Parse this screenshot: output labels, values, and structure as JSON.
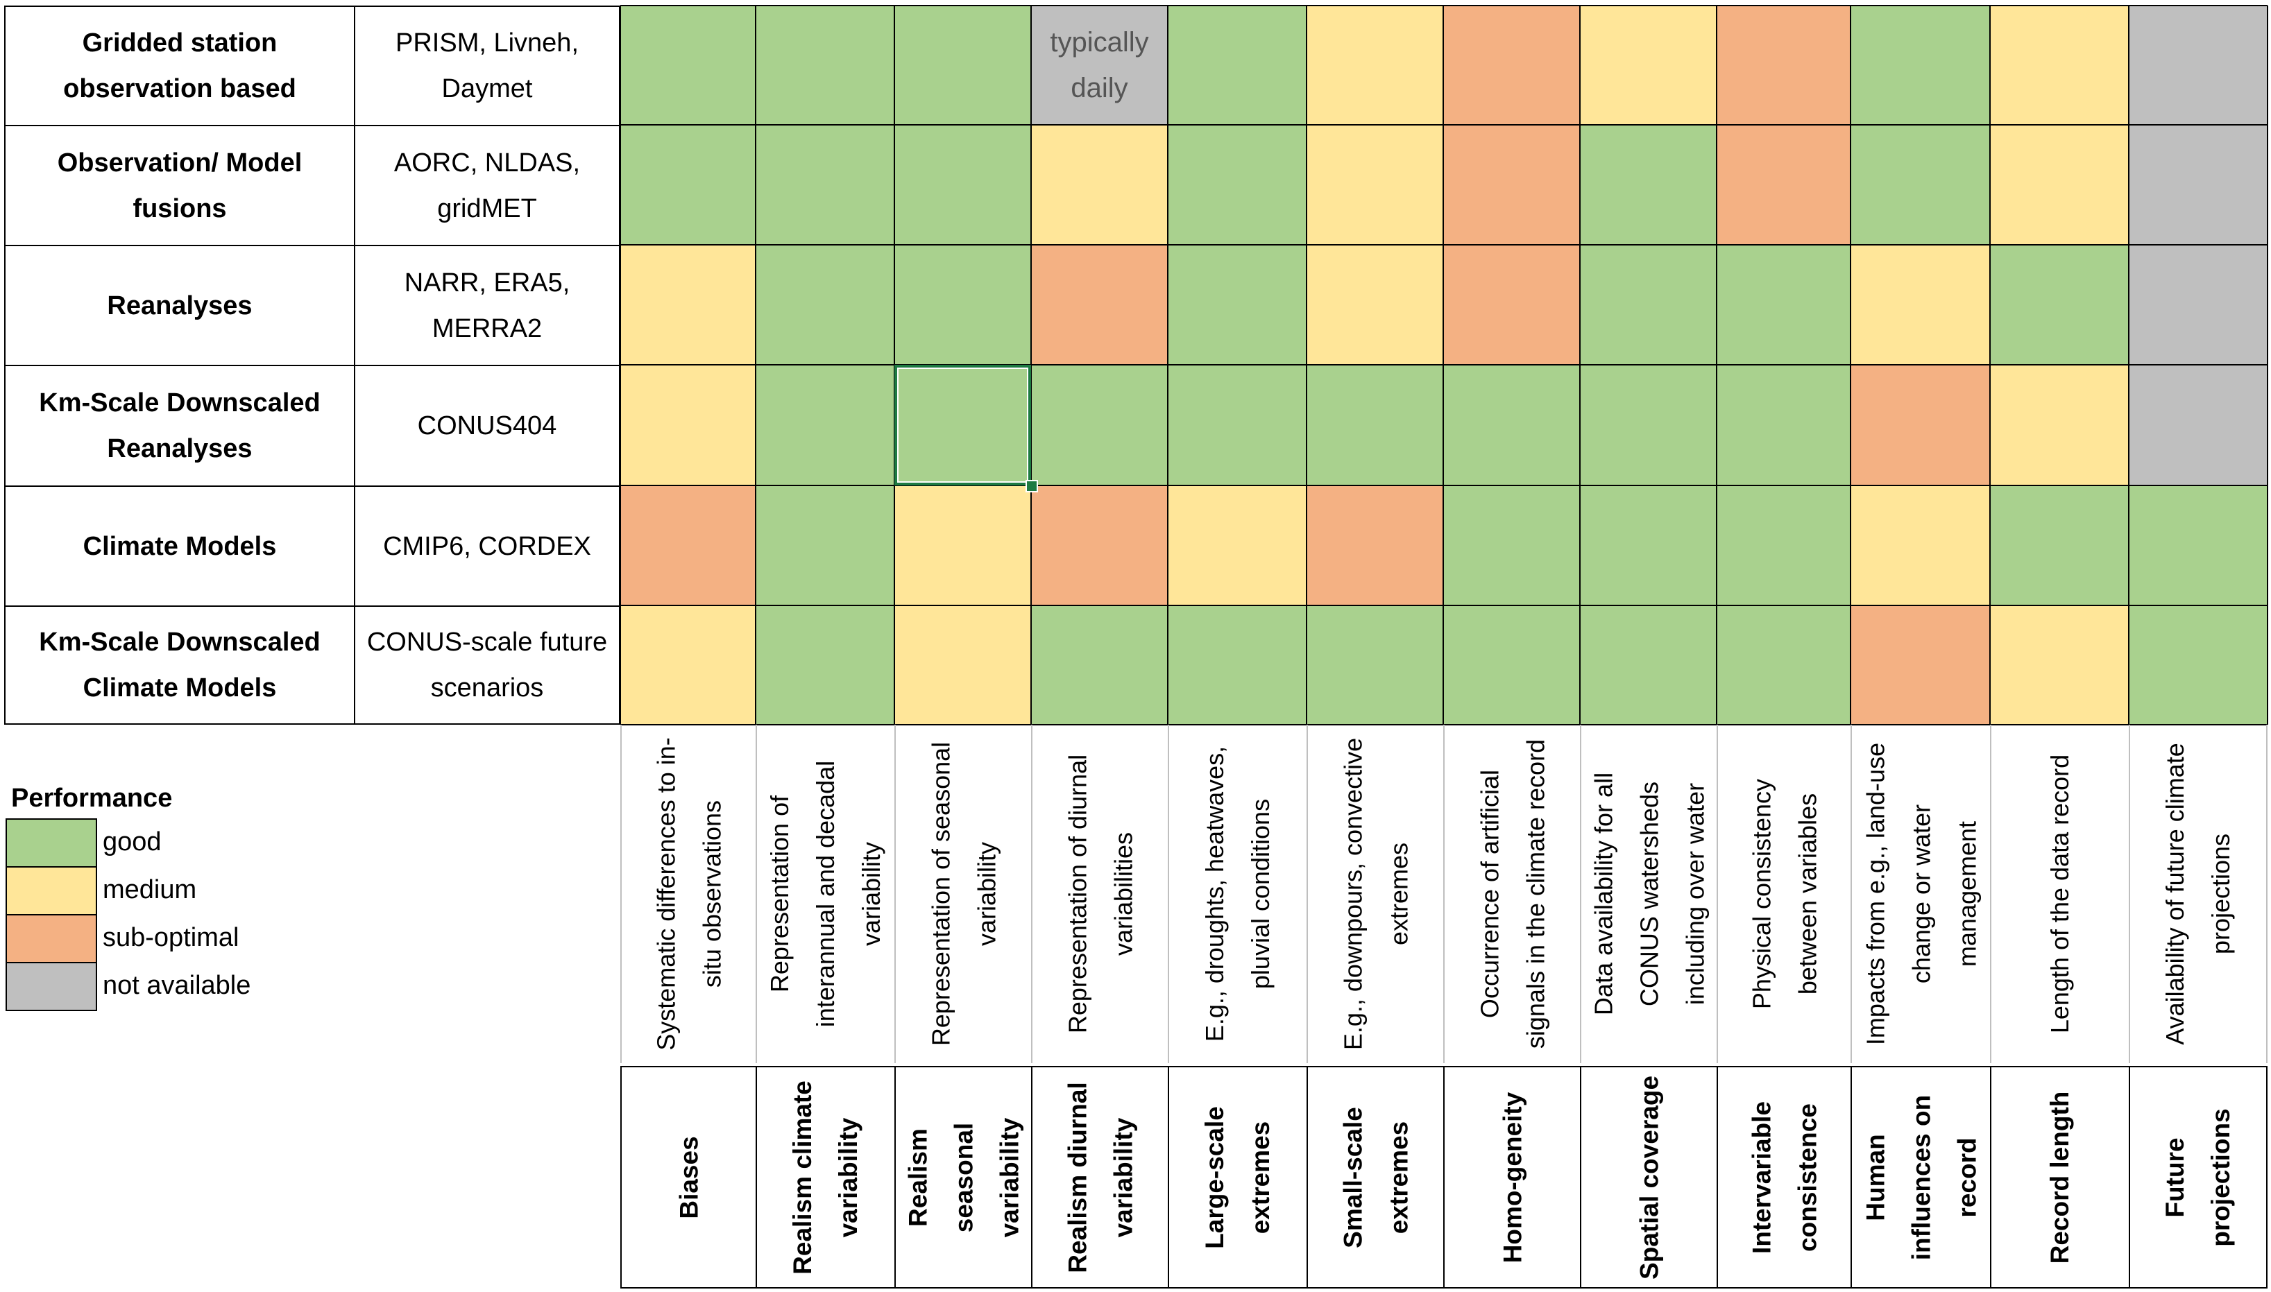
{
  "colors": {
    "good": "#a9d18e",
    "medium": "#ffe699",
    "sub-optimal": "#f4b183",
    "not available": "#bfbfbf",
    "selection": "#1e7b43"
  },
  "rows": [
    {
      "name": "Gridded station observation based",
      "examples": "PRISM, Livneh, Daymet"
    },
    {
      "name": "Observation/ Model fusions",
      "examples": "AORC, NLDAS, gridMET"
    },
    {
      "name": "Reanalyses",
      "examples": "NARR, ERA5, MERRA2"
    },
    {
      "name": "Km-Scale Downscaled Reanalyses",
      "examples": "CONUS404"
    },
    {
      "name": "Climate Models",
      "examples": "CMIP6, CORDEX"
    },
    {
      "name": "Km-Scale Downscaled Climate Models",
      "examples": "CONUS-scale future scenarios"
    }
  ],
  "columns": [
    {
      "header": "Biases",
      "description": "Systematic differences to in-situ observations"
    },
    {
      "header": "Realism climate variability",
      "description": "Representation of interannual and decadal variability"
    },
    {
      "header": "Realism seasonal variability",
      "description": "Representation of seasonal variability"
    },
    {
      "header": "Realism diurnal variability",
      "description": "Representation of diurnal variabilities"
    },
    {
      "header": "Large-scale extremes",
      "description": "E.g., droughts, heatwaves, pluvial conditions"
    },
    {
      "header": "Small-scale extremes",
      "description": "E.g., downpours, convective extremes"
    },
    {
      "header": "Homo-geneity",
      "description": "Occurrence of artificial signals in the climate record"
    },
    {
      "header": "Spatial coverage",
      "description": "Data availability for all CONUS watersheds including over water"
    },
    {
      "header": "Intervariable consistence",
      "description": "Physical consistency between variables"
    },
    {
      "header": "Human influences on record",
      "description": "Impacts from e.g., land-use change or water management"
    },
    {
      "header": "Record length",
      "description": "Length of the data record"
    },
    {
      "header": "Future projections",
      "description": "Availability of future climate projections"
    }
  ],
  "ratings": [
    [
      "good",
      "good",
      "good",
      "not available",
      "good",
      "medium",
      "sub-optimal",
      "medium",
      "sub-optimal",
      "good",
      "medium",
      "not available"
    ],
    [
      "good",
      "good",
      "good",
      "medium",
      "good",
      "medium",
      "sub-optimal",
      "good",
      "sub-optimal",
      "good",
      "medium",
      "not available"
    ],
    [
      "medium",
      "good",
      "good",
      "sub-optimal",
      "good",
      "medium",
      "sub-optimal",
      "good",
      "good",
      "medium",
      "good",
      "not available"
    ],
    [
      "medium",
      "good",
      "good",
      "good",
      "good",
      "good",
      "good",
      "good",
      "good",
      "sub-optimal",
      "medium",
      "not available"
    ],
    [
      "sub-optimal",
      "good",
      "medium",
      "sub-optimal",
      "medium",
      "sub-optimal",
      "good",
      "good",
      "good",
      "medium",
      "good",
      "good"
    ],
    [
      "medium",
      "good",
      "medium",
      "good",
      "good",
      "good",
      "good",
      "good",
      "good",
      "sub-optimal",
      "medium",
      "good"
    ]
  ],
  "cell_notes": [
    {
      "row": 0,
      "col": 3,
      "text": "typically daily"
    }
  ],
  "selected_cell": {
    "row": 3,
    "col": 2
  },
  "legend": {
    "title": "Performance",
    "items": [
      {
        "label": "good",
        "key": "good"
      },
      {
        "label": "medium",
        "key": "medium"
      },
      {
        "label": "sub-optimal",
        "key": "sub-optimal"
      },
      {
        "label": "not available",
        "key": "not available"
      }
    ]
  }
}
